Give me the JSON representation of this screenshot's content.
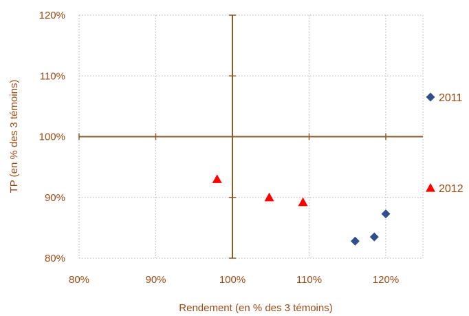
{
  "chart_data": {
    "type": "scatter",
    "title": "",
    "xlabel": "Rendement  (en % des 3 témoins)",
    "ylabel": "TP (en % des 3 témoins)",
    "xlim": [
      80,
      125
    ],
    "ylim": [
      80,
      120
    ],
    "x_ticks": [
      80,
      90,
      100,
      110,
      120
    ],
    "x_tick_labels": [
      "80%",
      "90%",
      "100%",
      "110%",
      "120%"
    ],
    "y_ticks": [
      80,
      90,
      100,
      110,
      120
    ],
    "y_tick_labels": [
      "80%",
      "90%",
      "100%",
      "110%",
      "120%"
    ],
    "grid": true,
    "reference_lines": {
      "x": 100,
      "y": 100
    },
    "legend_position": "right",
    "series": [
      {
        "name": "2011",
        "marker": "diamond",
        "color": "#2e4f8a",
        "points": [
          {
            "x": 116.0,
            "y": 82.8
          },
          {
            "x": 118.5,
            "y": 83.5
          },
          {
            "x": 120.0,
            "y": 87.3
          }
        ]
      },
      {
        "name": "2012",
        "marker": "triangle",
        "color": "#ff0000",
        "points": [
          {
            "x": 98.0,
            "y": 93.0
          },
          {
            "x": 104.8,
            "y": 90.0
          },
          {
            "x": 109.2,
            "y": 89.2
          }
        ]
      }
    ]
  },
  "colors": {
    "axis": "#8b5a2b",
    "grid": "#b0b0b0",
    "text": "#9b4a14"
  }
}
